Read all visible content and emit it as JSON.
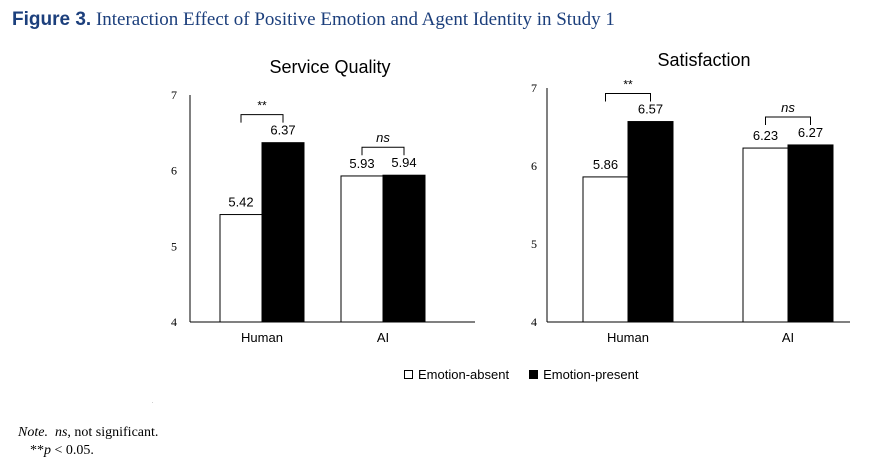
{
  "figure": {
    "label": "Figure 3.",
    "caption": "Interaction Effect of Positive Emotion and Agent Identity in Study 1"
  },
  "legend": {
    "absent": "Emotion-absent",
    "present": "Emotion-present"
  },
  "colors": {
    "absent": "#ffffff",
    "present": "#000000",
    "title": "#1c3f7c"
  },
  "note": {
    "prefix": "Note.",
    "ns_abbr": "ns",
    "ns_text": ", not significant.",
    "sig_stars": "**",
    "sig_p": "p",
    "sig_text": " < 0.05."
  },
  "chart_data": [
    {
      "type": "bar",
      "title": "Service Quality",
      "categories": [
        "Human",
        "AI"
      ],
      "series": [
        {
          "name": "Emotion-absent",
          "values": [
            5.42,
            5.93
          ]
        },
        {
          "name": "Emotion-present",
          "values": [
            6.37,
            5.94
          ]
        }
      ],
      "data_labels": [
        [
          "5.42",
          "6.37"
        ],
        [
          "5.93",
          "5.94"
        ]
      ],
      "significance": [
        "**",
        "ns"
      ],
      "ylim": [
        4,
        7
      ],
      "yticks": [
        "4",
        "5",
        "6",
        "7"
      ],
      "xlabel": "",
      "ylabel": "",
      "grid": false
    },
    {
      "type": "bar",
      "title": "Satisfaction",
      "categories": [
        "Human",
        "AI"
      ],
      "series": [
        {
          "name": "Emotion-absent",
          "values": [
            5.86,
            6.23
          ]
        },
        {
          "name": "Emotion-present",
          "values": [
            6.57,
            6.27
          ]
        }
      ],
      "data_labels": [
        [
          "5.86",
          "6.57"
        ],
        [
          "6.23",
          "6.27"
        ]
      ],
      "significance": [
        "**",
        "ns"
      ],
      "ylim": [
        4,
        7
      ],
      "yticks": [
        "4",
        "5",
        "6",
        "7"
      ],
      "xlabel": "",
      "ylabel": "",
      "grid": false
    }
  ]
}
